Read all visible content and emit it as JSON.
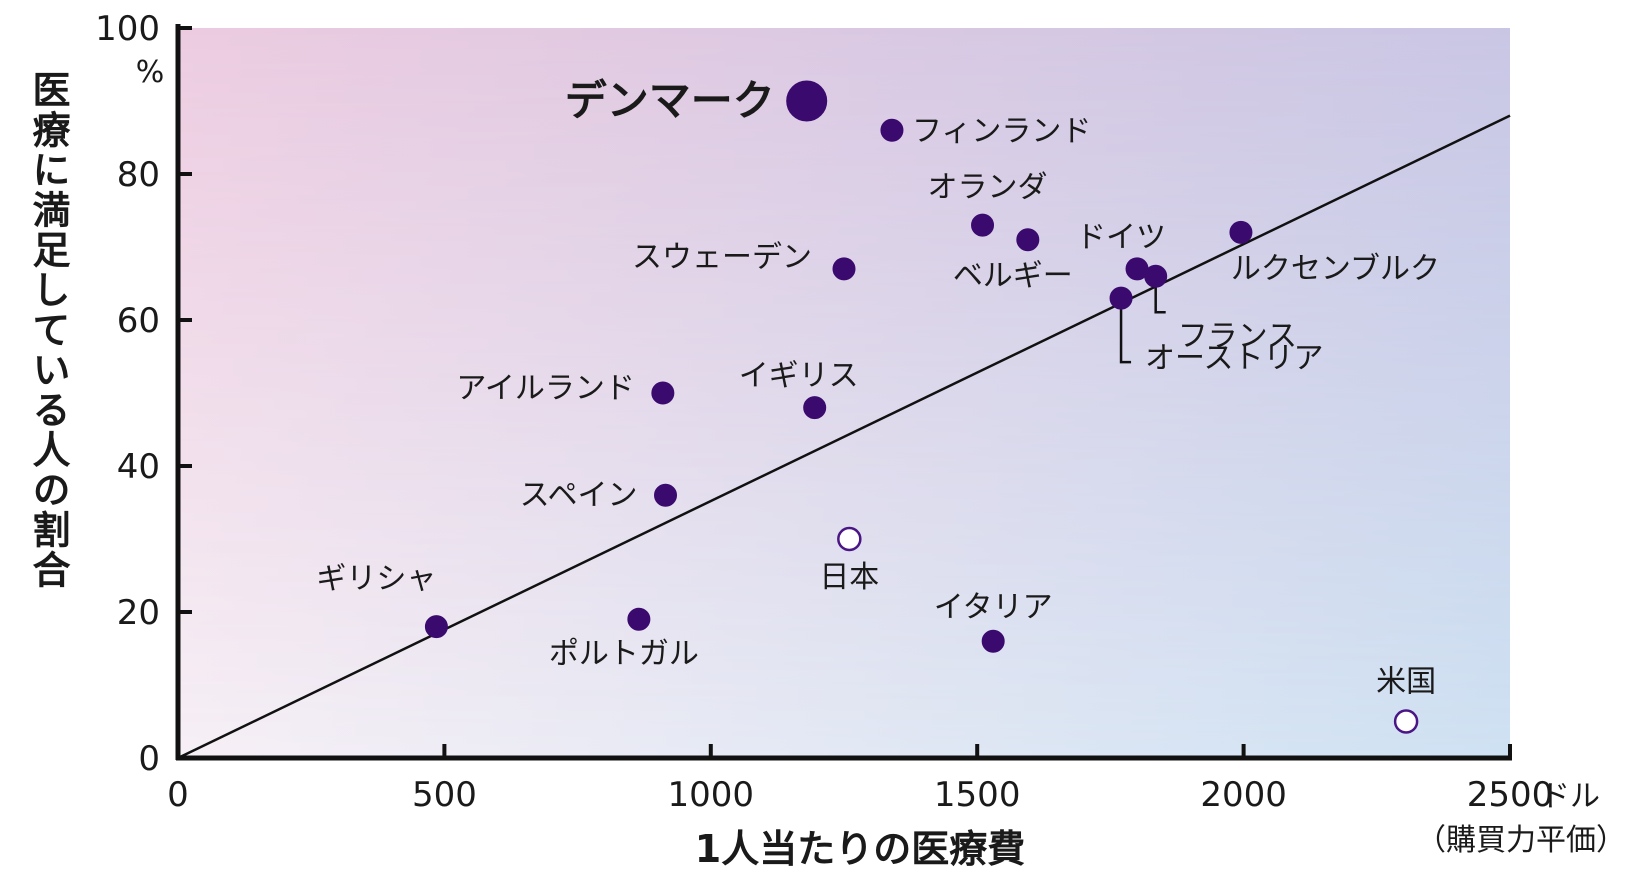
{
  "chart_data": {
    "type": "scatter",
    "title": "",
    "xlabel": "1人当たりの医療費",
    "ylabel": "医療に満足している人の割合",
    "x_unit": "ドル",
    "x_unit_note": "（購買力平価）",
    "y_unit": "%",
    "xlim": [
      0,
      2500
    ],
    "ylim": [
      0,
      100
    ],
    "x_ticks": [
      "0",
      "500",
      "1000",
      "1500",
      "2000",
      "2500"
    ],
    "y_ticks": [
      "0",
      "20",
      "40",
      "60",
      "80",
      "100"
    ],
    "grid": false,
    "colors": {
      "point": "#3b0a6e",
      "hollow": "#4a1585",
      "line": "#111111",
      "bg_top_left": "#eccbe0",
      "bg_top_right": "#c9c6e4",
      "bg_bottom_left": "#f7f0f6",
      "bg_bottom_right": "#cfe2f3"
    },
    "trendline": {
      "from": [
        0,
        0
      ],
      "to": [
        2500,
        88
      ]
    },
    "points": [
      {
        "name": "デンマーク",
        "x": 1180,
        "y": 90,
        "size": "large",
        "filled": true
      },
      {
        "name": "フィンランド",
        "x": 1340,
        "y": 86,
        "filled": true
      },
      {
        "name": "オランダ",
        "x": 1510,
        "y": 73,
        "filled": true
      },
      {
        "name": "ベルギー",
        "x": 1595,
        "y": 71,
        "filled": true
      },
      {
        "name": "スウェーデン",
        "x": 1250,
        "y": 67,
        "filled": true
      },
      {
        "name": "ドイツ",
        "x": 1800,
        "y": 67,
        "filled": true
      },
      {
        "name": "ルクセンブルク",
        "x": 1995,
        "y": 72,
        "filled": true
      },
      {
        "name": "フランス",
        "x": 1835,
        "y": 66,
        "filled": true
      },
      {
        "name": "オーストリア",
        "x": 1770,
        "y": 63,
        "filled": true
      },
      {
        "name": "アイルランド",
        "x": 910,
        "y": 50,
        "filled": true
      },
      {
        "name": "イギリス",
        "x": 1195,
        "y": 48,
        "filled": true
      },
      {
        "name": "スペイン",
        "x": 915,
        "y": 36,
        "filled": true
      },
      {
        "name": "日本",
        "x": 1260,
        "y": 30,
        "filled": false
      },
      {
        "name": "ギリシャ",
        "x": 485,
        "y": 18,
        "filled": true
      },
      {
        "name": "ポルトガル",
        "x": 865,
        "y": 19,
        "filled": true
      },
      {
        "name": "イタリア",
        "x": 1530,
        "y": 16,
        "filled": true
      },
      {
        "name": "米国",
        "x": 2305,
        "y": 5,
        "filled": false
      }
    ]
  }
}
